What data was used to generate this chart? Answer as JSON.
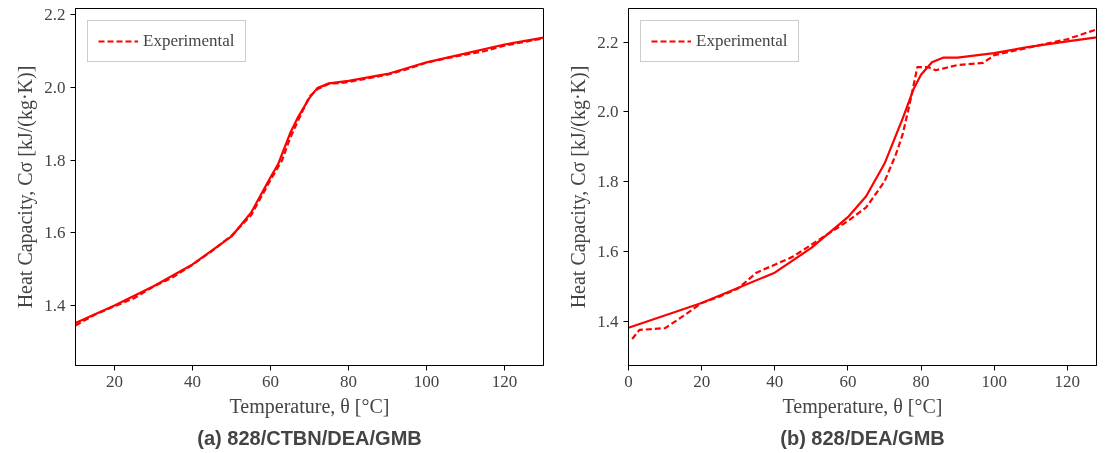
{
  "chart_data": [
    {
      "type": "line",
      "title": "(a) 828/CTBN/DEA/GMB",
      "xlabel": "Temperature, θ [°C]",
      "ylabel": "Heat Capacity, Cσ [kJ/(kg·K)]",
      "xlim": [
        10,
        130
      ],
      "ylim": [
        1.235,
        2.217
      ],
      "xticks": [
        20,
        40,
        60,
        80,
        100,
        120
      ],
      "yticks": [
        1.4,
        1.6,
        1.8,
        {
          "value": 2,
          "label": "2.0"
        },
        2.2
      ],
      "legend": "top left",
      "grid": false,
      "series": [
        {
          "color": "#ff0000",
          "line_style": "solid",
          "x": [
            10,
            20,
            30,
            40,
            50,
            55,
            60,
            62,
            65,
            67,
            70,
            72,
            75,
            80,
            90,
            100,
            120,
            130
          ],
          "values": [
            1.352,
            1.4,
            1.453,
            1.513,
            1.59,
            1.655,
            1.753,
            1.79,
            1.873,
            1.917,
            1.971,
            1.998,
            2.011,
            2.018,
            2.037,
            2.069,
            2.118,
            2.137
          ]
        },
        {
          "name": "Experimental",
          "color": "#ff0000",
          "line_style": "dashed",
          "x": [
            10,
            15,
            20,
            25,
            30,
            35,
            40,
            45,
            50,
            55,
            60,
            63,
            65,
            68,
            70,
            72,
            75,
            78,
            80,
            85,
            90,
            95,
            100,
            105,
            110,
            115,
            120,
            125,
            130
          ],
          "values": [
            1.345,
            1.375,
            1.398,
            1.42,
            1.452,
            1.478,
            1.512,
            1.55,
            1.592,
            1.648,
            1.745,
            1.8,
            1.86,
            1.93,
            1.975,
            1.995,
            2.01,
            2.012,
            2.015,
            2.025,
            2.035,
            2.05,
            2.068,
            2.08,
            2.09,
            2.1,
            2.115,
            2.125,
            2.135
          ]
        }
      ]
    },
    {
      "type": "line",
      "title": "(b) 828/DEA/GMB",
      "xlabel": "Temperature, θ [°C]",
      "ylabel": "Heat Capacity, Cσ [kJ/(kg·K)]",
      "xlim": [
        0,
        128
      ],
      "ylim": [
        1.273,
        2.296
      ],
      "xticks": [
        0,
        20,
        40,
        60,
        80,
        100,
        120
      ],
      "yticks": [
        1.4,
        1.6,
        1.8,
        {
          "value": 2,
          "label": "2.0"
        },
        2.2
      ],
      "legend": "top left",
      "grid": false,
      "series": [
        {
          "color": "#ff0000",
          "line_style": "solid",
          "x": [
            0,
            20,
            40,
            50,
            60,
            65,
            70,
            75,
            78,
            80,
            83,
            86,
            90,
            100,
            110,
            120,
            128
          ],
          "values": [
            1.381,
            1.452,
            1.539,
            1.61,
            1.698,
            1.758,
            1.851,
            1.981,
            2.066,
            2.106,
            2.142,
            2.155,
            2.155,
            2.168,
            2.187,
            2.202,
            2.213
          ]
        },
        {
          "name": "Experimental",
          "color": "#ff0000",
          "line_style": "dashed",
          "x": [
            1,
            3,
            10,
            15,
            20,
            25,
            30,
            35,
            40,
            45,
            50,
            55,
            60,
            65,
            70,
            73,
            75,
            77,
            79,
            82,
            84,
            90,
            97,
            100,
            105,
            110,
            115,
            120,
            128
          ],
          "values": [
            1.349,
            1.375,
            1.38,
            1.415,
            1.452,
            1.471,
            1.494,
            1.539,
            1.562,
            1.585,
            1.619,
            1.653,
            1.687,
            1.726,
            1.8,
            1.874,
            1.936,
            2.027,
            2.128,
            2.128,
            2.119,
            2.134,
            2.14,
            2.162,
            2.174,
            2.185,
            2.197,
            2.208,
            2.236
          ]
        }
      ]
    }
  ]
}
